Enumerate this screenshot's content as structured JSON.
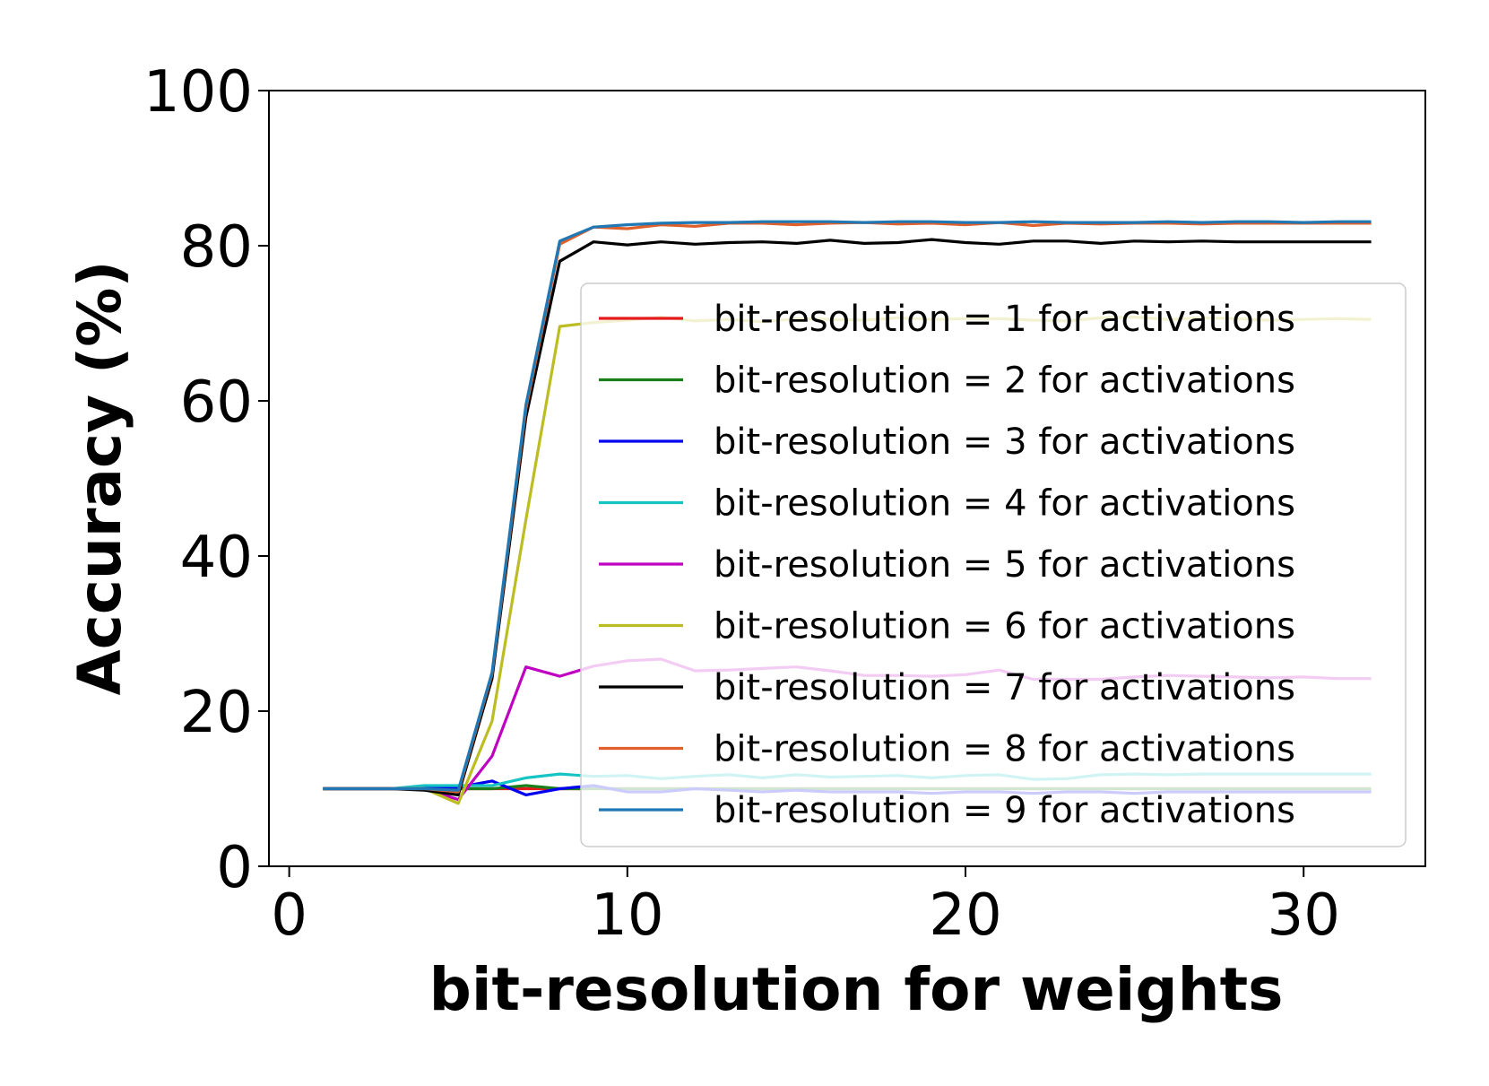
{
  "chart_data": {
    "type": "line",
    "title": "",
    "xlabel": "bit-resolution for weights",
    "ylabel": "Accuracy (%)",
    "xlim": [
      -0.6,
      33.6
    ],
    "ylim": [
      0,
      100
    ],
    "xticks": [
      0,
      10,
      20,
      30
    ],
    "yticks": [
      0,
      20,
      40,
      60,
      80,
      100
    ],
    "grid": false,
    "legend_position": "center-right",
    "x": [
      1,
      2,
      3,
      4,
      5,
      6,
      7,
      8,
      9,
      10,
      11,
      12,
      13,
      14,
      15,
      16,
      17,
      18,
      19,
      20,
      21,
      22,
      23,
      24,
      25,
      26,
      27,
      28,
      29,
      30,
      31,
      32
    ],
    "series": [
      {
        "name": "bit-resolution = 1 for activations",
        "color": "#e41a1c",
        "values": [
          10,
          10,
          10,
          10,
          10,
          10,
          10,
          10,
          10,
          10,
          10,
          10,
          10,
          10,
          10,
          10,
          10,
          10,
          10,
          10,
          10,
          10,
          10,
          10,
          10,
          10,
          10,
          10,
          10,
          10,
          10,
          10
        ]
      },
      {
        "name": "bit-resolution = 2 for activations",
        "color": "#1a7f1a",
        "values": [
          10,
          10,
          10,
          10,
          10,
          10,
          10.4,
          10,
          10,
          10,
          10,
          10,
          10,
          10,
          10,
          10,
          10,
          10,
          10,
          10,
          10,
          10,
          10,
          10,
          10,
          10,
          10,
          10,
          10,
          10,
          10,
          10
        ]
      },
      {
        "name": "bit-resolution = 3 for activations",
        "color": "#0000ee",
        "values": [
          10,
          10,
          10,
          10.2,
          10.2,
          11,
          9.2,
          10,
          10.4,
          9.6,
          9.6,
          10,
          9.8,
          9.6,
          9.8,
          9.6,
          9.6,
          9.6,
          9.4,
          9.6,
          9.6,
          9.4,
          9.6,
          9.6,
          9.4,
          9.6,
          9.6,
          9.6,
          9.6,
          9.6,
          9.6,
          9.6
        ]
      },
      {
        "name": "bit-resolution = 4 for activations",
        "color": "#17c4c4",
        "values": [
          10,
          10,
          10,
          10.4,
          10.4,
          10.4,
          11.4,
          11.9,
          11.6,
          11.7,
          11.3,
          11.6,
          11.8,
          11.4,
          11.8,
          11.5,
          11.6,
          11.7,
          11.4,
          11.7,
          11.8,
          11.2,
          11.3,
          11.8,
          11.9,
          11.8,
          11.9,
          11.9,
          11.9,
          11.9,
          11.9,
          11.9
        ]
      },
      {
        "name": "bit-resolution = 5 for activations",
        "color": "#c000c0",
        "values": [
          10,
          10,
          10,
          10,
          8.6,
          14.2,
          25.7,
          24.5,
          25.8,
          26.5,
          26.7,
          25.2,
          25.3,
          25.5,
          25.7,
          25.2,
          24.6,
          24.6,
          24.5,
          24.7,
          25.3,
          24.1,
          24.1,
          24.1,
          24.4,
          24.6,
          24.5,
          24.4,
          24.3,
          24.4,
          24.2,
          24.2
        ]
      },
      {
        "name": "bit-resolution = 6 for activations",
        "color": "#bcbd22",
        "values": [
          10,
          10,
          10,
          10,
          8.1,
          18.7,
          44.7,
          69.6,
          70.1,
          70.4,
          70.8,
          70.3,
          70.5,
          70.2,
          70.6,
          70.5,
          70.4,
          70.7,
          70.5,
          70.6,
          70.6,
          70.4,
          70.3,
          70.7,
          70.8,
          70.5,
          70.7,
          70.6,
          70.4,
          70.5,
          70.6,
          70.5
        ]
      },
      {
        "name": "bit-resolution = 7 for activations",
        "color": "#000000",
        "values": [
          10,
          10,
          10,
          9.8,
          9.2,
          24.2,
          57.9,
          78.0,
          80.5,
          80.1,
          80.5,
          80.2,
          80.4,
          80.5,
          80.3,
          80.7,
          80.3,
          80.4,
          80.8,
          80.4,
          80.2,
          80.6,
          80.6,
          80.3,
          80.6,
          80.5,
          80.6,
          80.5,
          80.5,
          80.5,
          80.5,
          80.5
        ]
      },
      {
        "name": "bit-resolution = 8 for activations",
        "color": "#e0602c",
        "values": [
          10,
          10,
          10,
          10,
          9.6,
          24.8,
          59.0,
          80.2,
          82.4,
          82.2,
          82.7,
          82.5,
          82.9,
          82.9,
          82.7,
          82.9,
          83.0,
          82.8,
          82.9,
          82.7,
          83.0,
          82.6,
          82.9,
          82.8,
          82.9,
          82.9,
          82.8,
          82.9,
          82.9,
          82.9,
          82.9,
          82.9
        ]
      },
      {
        "name": "bit-resolution = 9 for activations",
        "color": "#1f77b4",
        "values": [
          10,
          10,
          10,
          10,
          9.8,
          25.0,
          59.5,
          80.6,
          82.4,
          82.7,
          82.9,
          83.0,
          83.0,
          83.1,
          83.1,
          83.1,
          83.0,
          83.1,
          83.1,
          83.0,
          83.0,
          83.1,
          83.0,
          83.0,
          83.0,
          83.1,
          83.0,
          83.1,
          83.1,
          83.0,
          83.1,
          83.1
        ]
      }
    ]
  }
}
